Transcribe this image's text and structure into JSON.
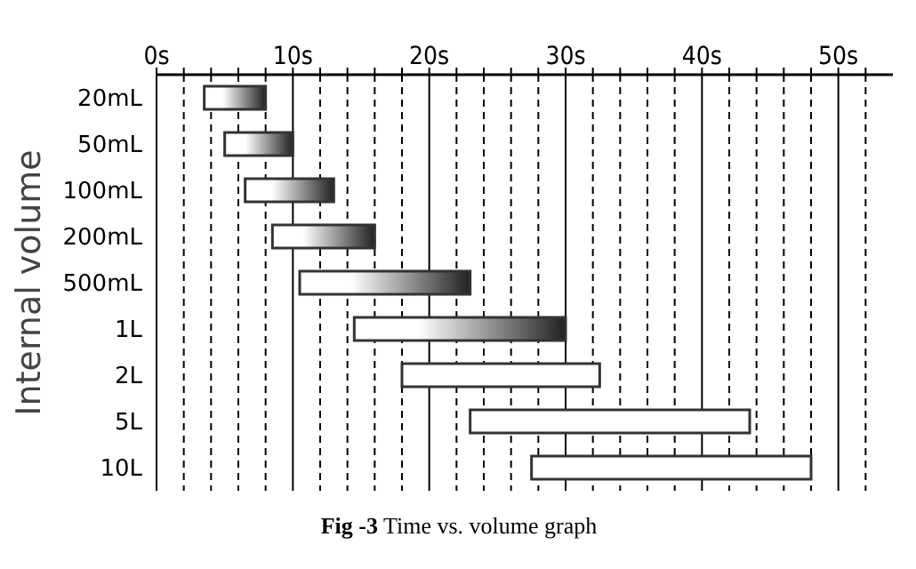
{
  "chart_data": {
    "type": "bar",
    "orientation": "horizontal",
    "title": "Fig -3 Time vs. volume graph",
    "ylabel": "Internal volume",
    "categories": [
      "20mL",
      "50mL",
      "100mL",
      "200mL",
      "500mL",
      "1L",
      "2L",
      "5L",
      "10L"
    ],
    "base": [
      3.5,
      5,
      6.5,
      8.5,
      10.5,
      14.5,
      18,
      23,
      27.5
    ],
    "values": [
      4.5,
      5,
      6.5,
      7.5,
      12.5,
      15.5,
      14.5,
      20.5,
      20.5
    ],
    "colors": [
      "#222222",
      "#222222",
      "#222222",
      "#222222",
      "#222222",
      "#222222",
      "#ffffff",
      "#ffffff",
      "#ffffff"
    ],
    "xlim": [
      0,
      54
    ],
    "xticks": [
      {
        "value": 0,
        "label": "0s"
      },
      {
        "value": 2,
        "label": null
      },
      {
        "value": 4,
        "label": null
      },
      {
        "value": 6,
        "label": null
      },
      {
        "value": 8,
        "label": null
      },
      {
        "value": 10,
        "label": "10s"
      },
      {
        "value": 12,
        "label": null
      },
      {
        "value": 14,
        "label": null
      },
      {
        "value": 16,
        "label": null
      },
      {
        "value": 18,
        "label": null
      },
      {
        "value": 20,
        "label": "20s"
      },
      {
        "value": 22,
        "label": null
      },
      {
        "value": 24,
        "label": null
      },
      {
        "value": 26,
        "label": null
      },
      {
        "value": 28,
        "label": null
      },
      {
        "value": 30,
        "label": "30s"
      },
      {
        "value": 32,
        "label": null
      },
      {
        "value": 34,
        "label": null
      },
      {
        "value": 36,
        "label": null
      },
      {
        "value": 38,
        "label": null
      },
      {
        "value": 40,
        "label": "40s"
      },
      {
        "value": 42,
        "label": null
      },
      {
        "value": 44,
        "label": null
      },
      {
        "value": 46,
        "label": null
      },
      {
        "value": 48,
        "label": null
      },
      {
        "value": 50,
        "label": "50s"
      },
      {
        "value": 52,
        "label": null
      }
    ],
    "grid": "x"
  }
}
